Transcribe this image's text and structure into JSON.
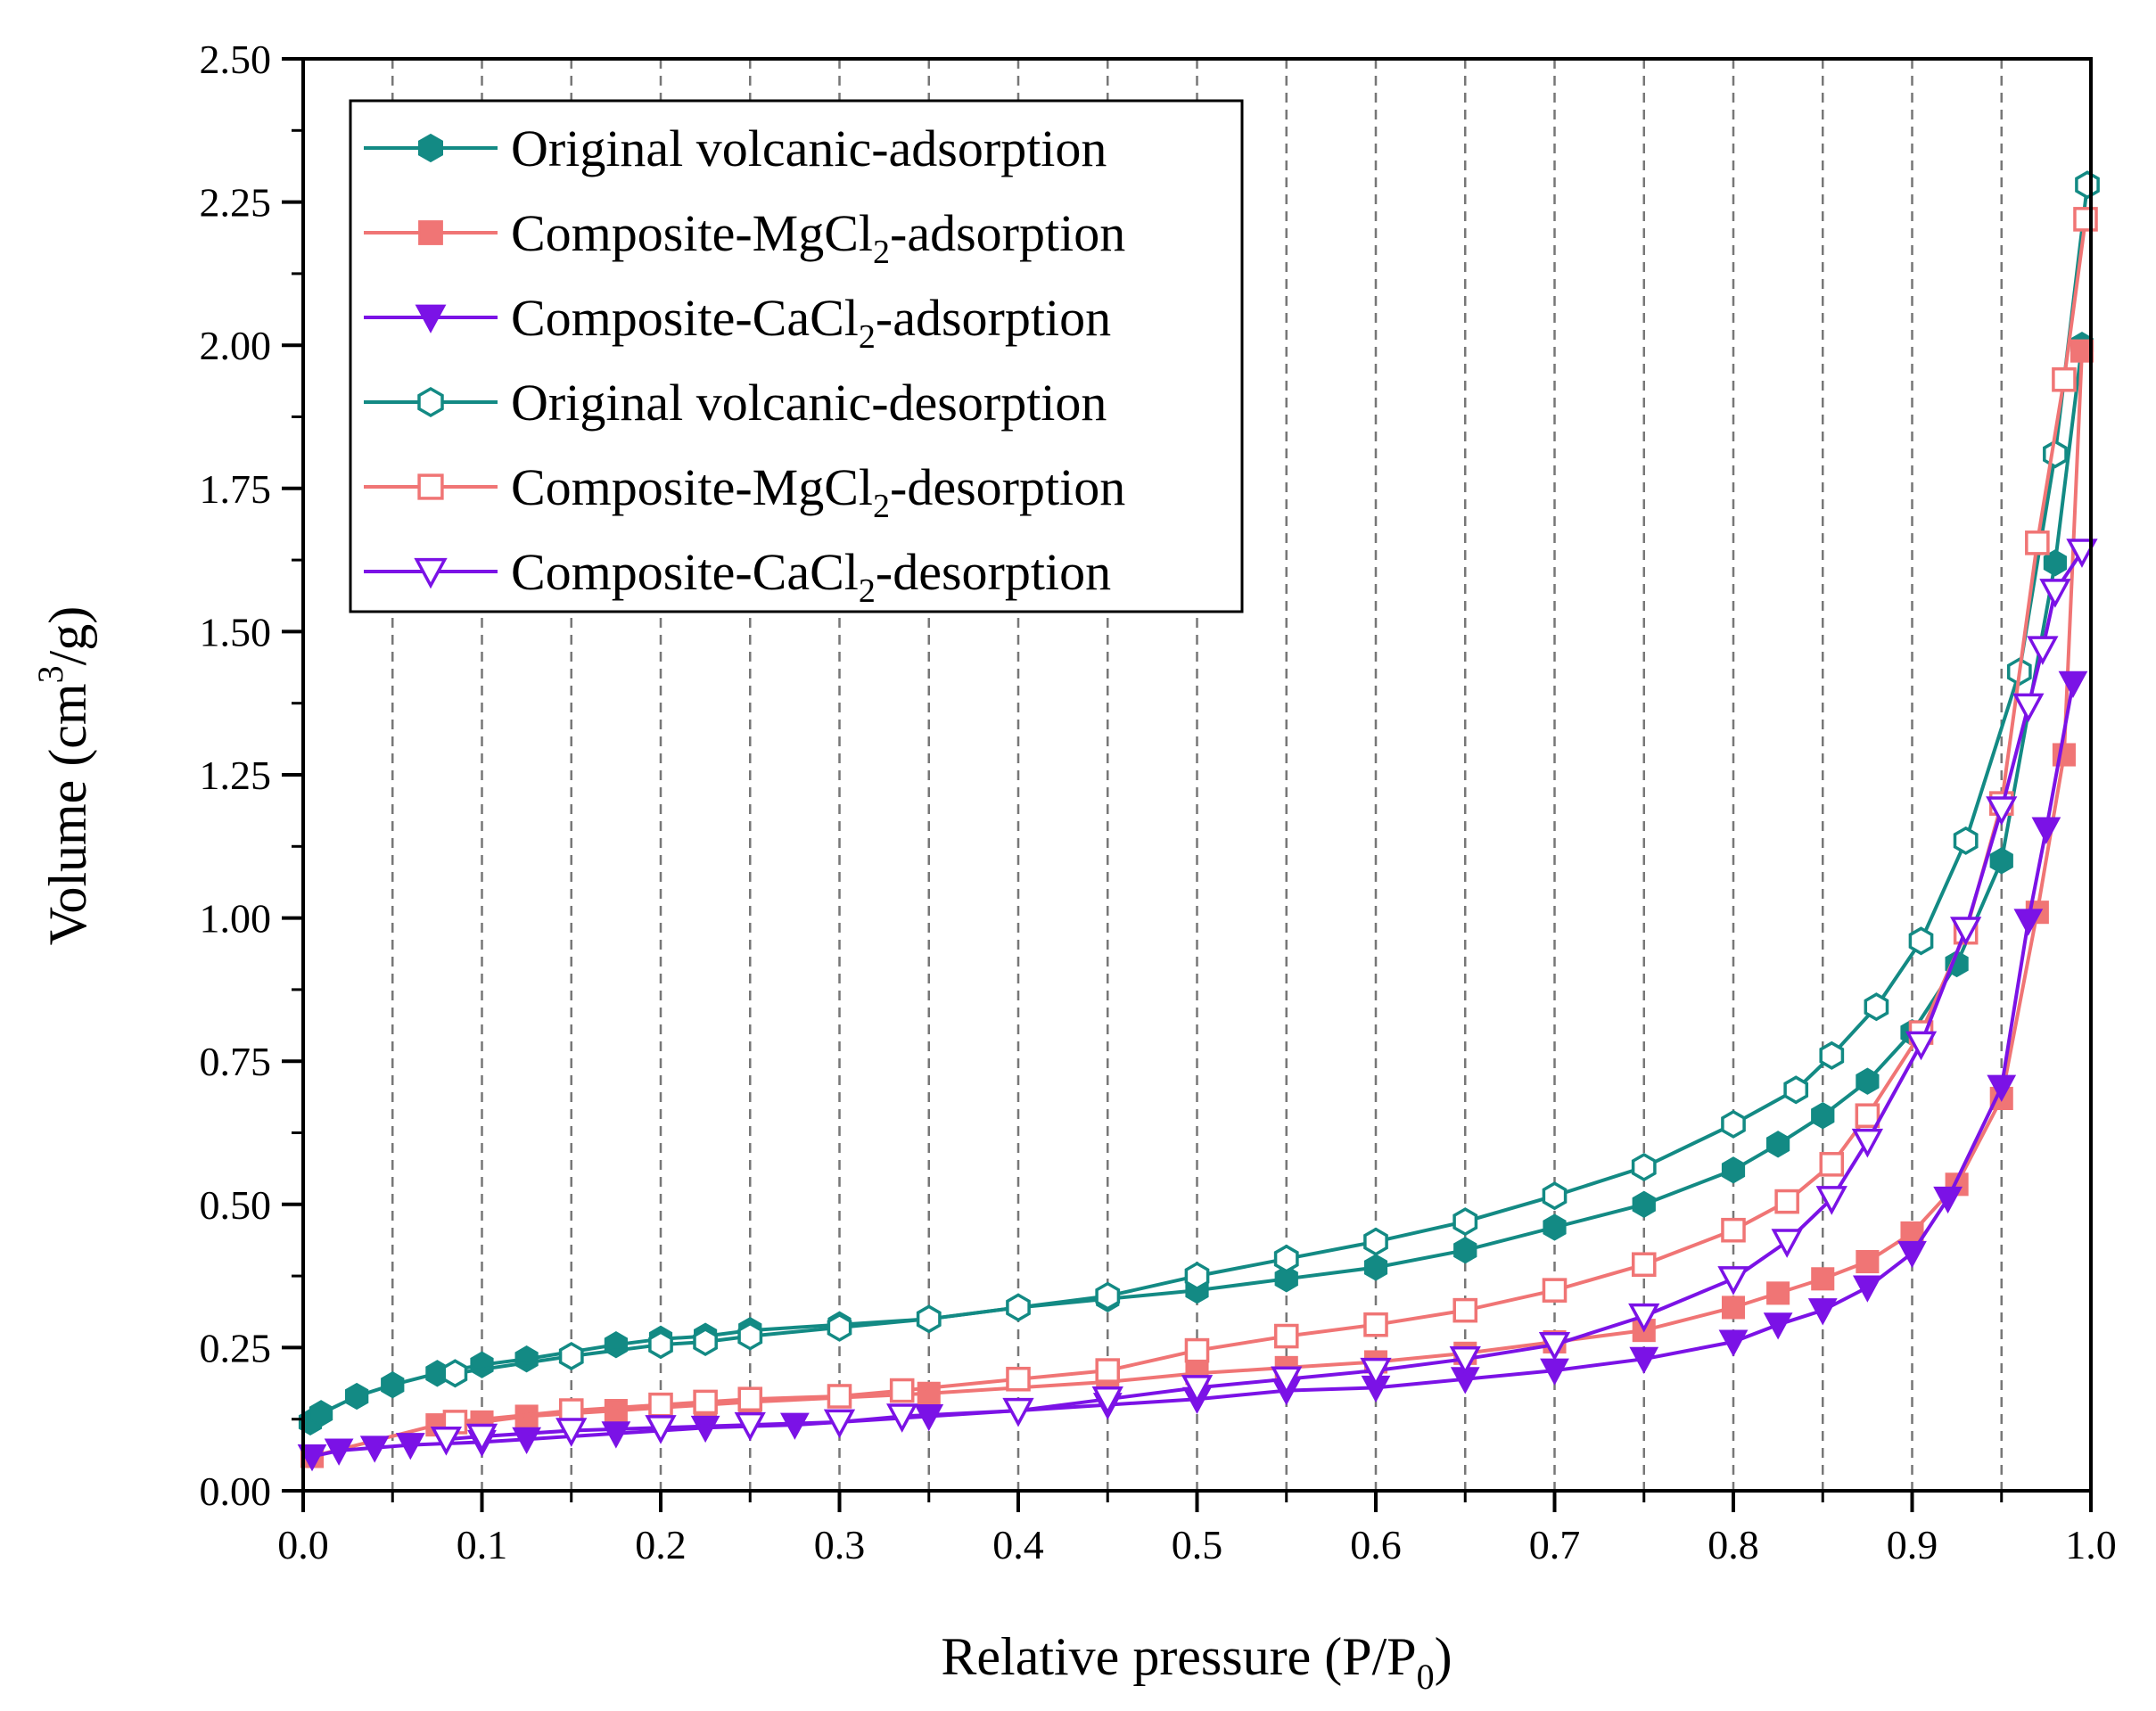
{
  "chart_data": {
    "type": "line",
    "xlabel": "Relative pressure (P/P",
    "xlabel_sub": "0",
    "xlabel_end": ")",
    "ylabel": "Volume (cm",
    "ylabel_sup": "3",
    "ylabel_end": "/g)",
    "xlim": [
      0.0,
      1.0
    ],
    "ylim": [
      0.0,
      2.5
    ],
    "xticks": [
      "0.0",
      "0.1",
      "0.2",
      "0.3",
      "0.4",
      "0.5",
      "0.6",
      "0.7",
      "0.8",
      "0.9",
      "1.0"
    ],
    "yticks": [
      "0.00",
      "0.25",
      "0.50",
      "0.75",
      "1.00",
      "1.25",
      "1.50",
      "1.75",
      "2.00",
      "2.25",
      "2.50"
    ],
    "grid": "vertical dashed lines every 0.05",
    "legend_position": "top-left",
    "series": [
      {
        "name": "Original volcanic-adsorption",
        "label": {
          "pre": "Original volcanic-adsorption",
          "sub": "",
          "post": ""
        },
        "color": "#138a84",
        "marker": "hexagon",
        "filled": true,
        "x": [
          0.004,
          0.01,
          0.03,
          0.05,
          0.075,
          0.1,
          0.125,
          0.175,
          0.2,
          0.225,
          0.25,
          0.3,
          0.35,
          0.4,
          0.45,
          0.5,
          0.55,
          0.6,
          0.65,
          0.7,
          0.75,
          0.8,
          0.825,
          0.85,
          0.875,
          0.9,
          0.925,
          0.95,
          0.98,
          0.995
        ],
        "y": [
          0.12,
          0.135,
          0.165,
          0.185,
          0.205,
          0.22,
          0.23,
          0.255,
          0.265,
          0.27,
          0.28,
          0.29,
          0.3,
          0.32,
          0.335,
          0.35,
          0.37,
          0.39,
          0.42,
          0.46,
          0.5,
          0.56,
          0.605,
          0.655,
          0.715,
          0.8,
          0.92,
          1.1,
          1.62,
          2.0
        ]
      },
      {
        "name": "Composite-MgCl2-adsorption",
        "label": {
          "pre": "Composite-MgCl",
          "sub": "2",
          "post": "-adsorption"
        },
        "color": "#f07575",
        "marker": "square",
        "filled": true,
        "x": [
          0.005,
          0.075,
          0.1,
          0.125,
          0.175,
          0.225,
          0.25,
          0.35,
          0.45,
          0.5,
          0.55,
          0.6,
          0.65,
          0.7,
          0.75,
          0.8,
          0.825,
          0.85,
          0.875,
          0.9,
          0.925,
          0.95,
          0.97,
          0.985,
          0.995
        ],
        "y": [
          0.06,
          0.115,
          0.12,
          0.13,
          0.14,
          0.15,
          0.155,
          0.17,
          0.19,
          0.205,
          0.215,
          0.225,
          0.24,
          0.26,
          0.28,
          0.32,
          0.345,
          0.37,
          0.4,
          0.45,
          0.535,
          0.685,
          1.01,
          1.285,
          1.99
        ]
      },
      {
        "name": "Composite-CaCl2-adsorption",
        "label": {
          "pre": "Composite-CaCl",
          "sub": "2",
          "post": "-adsorption"
        },
        "color": "#7b12e6",
        "marker": "triangle-down",
        "filled": true,
        "x": [
          0.005,
          0.02,
          0.04,
          0.06,
          0.1,
          0.125,
          0.175,
          0.225,
          0.275,
          0.35,
          0.45,
          0.5,
          0.55,
          0.6,
          0.65,
          0.7,
          0.75,
          0.8,
          0.825,
          0.85,
          0.875,
          0.9,
          0.92,
          0.95,
          0.965,
          0.975,
          0.99
        ],
        "y": [
          0.06,
          0.07,
          0.075,
          0.08,
          0.085,
          0.09,
          0.1,
          0.11,
          0.115,
          0.13,
          0.15,
          0.16,
          0.175,
          0.18,
          0.195,
          0.21,
          0.23,
          0.26,
          0.29,
          0.315,
          0.355,
          0.415,
          0.51,
          0.705,
          0.995,
          1.155,
          1.41
        ]
      },
      {
        "name": "Original volcanic-desorption",
        "label": {
          "pre": "Original volcanic-desorption",
          "sub": "",
          "post": ""
        },
        "color": "#138a84",
        "marker": "hexagon",
        "filled": false,
        "x": [
          0.998,
          0.98,
          0.96,
          0.93,
          0.905,
          0.88,
          0.855,
          0.835,
          0.8,
          0.75,
          0.7,
          0.65,
          0.6,
          0.55,
          0.5,
          0.45,
          0.4,
          0.35,
          0.3,
          0.25,
          0.225,
          0.2,
          0.15,
          0.085
        ],
        "y": [
          2.28,
          1.81,
          1.43,
          1.135,
          0.96,
          0.845,
          0.76,
          0.7,
          0.64,
          0.565,
          0.515,
          0.47,
          0.435,
          0.405,
          0.375,
          0.34,
          0.32,
          0.3,
          0.285,
          0.27,
          0.26,
          0.255,
          0.235,
          0.205
        ]
      },
      {
        "name": "Composite-MgCl2-desorption",
        "label": {
          "pre": "Composite-MgCl",
          "sub": "2",
          "post": "-desorption"
        },
        "color": "#f07575",
        "marker": "square",
        "filled": false,
        "x": [
          0.997,
          0.985,
          0.97,
          0.95,
          0.93,
          0.905,
          0.875,
          0.855,
          0.83,
          0.8,
          0.75,
          0.7,
          0.65,
          0.6,
          0.55,
          0.5,
          0.45,
          0.4,
          0.335,
          0.3,
          0.25,
          0.225,
          0.2,
          0.15,
          0.085
        ],
        "y": [
          2.22,
          1.94,
          1.655,
          1.2,
          0.975,
          0.8,
          0.655,
          0.57,
          0.505,
          0.455,
          0.395,
          0.35,
          0.315,
          0.29,
          0.27,
          0.245,
          0.21,
          0.195,
          0.175,
          0.165,
          0.16,
          0.155,
          0.15,
          0.14,
          0.12
        ]
      },
      {
        "name": "Composite-CaCl2-desorption",
        "label": {
          "pre": "Composite-CaCl",
          "sub": "2",
          "post": "-desorption"
        },
        "color": "#7b12e6",
        "marker": "triangle-down",
        "filled": false,
        "x": [
          0.995,
          0.98,
          0.973,
          0.965,
          0.95,
          0.93,
          0.905,
          0.875,
          0.855,
          0.83,
          0.8,
          0.75,
          0.7,
          0.65,
          0.6,
          0.55,
          0.5,
          0.45,
          0.4,
          0.335,
          0.3,
          0.25,
          0.2,
          0.15,
          0.1,
          0.08
        ],
        "y": [
          1.64,
          1.57,
          1.47,
          1.37,
          1.19,
          0.98,
          0.78,
          0.61,
          0.51,
          0.435,
          0.37,
          0.305,
          0.255,
          0.23,
          0.21,
          0.195,
          0.18,
          0.16,
          0.14,
          0.13,
          0.12,
          0.115,
          0.11,
          0.105,
          0.095,
          0.09
        ]
      }
    ]
  }
}
